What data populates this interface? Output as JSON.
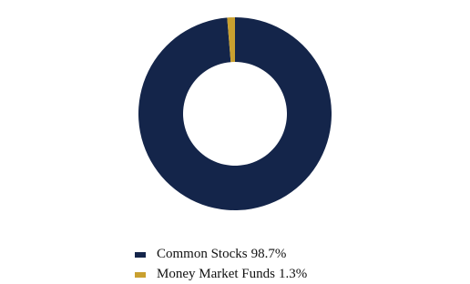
{
  "chart_data": {
    "type": "donut",
    "categories": [
      "Common Stocks",
      "Money Market Funds"
    ],
    "values": [
      98.7,
      1.3
    ],
    "value_labels": [
      "98.7%",
      "1.3%"
    ],
    "colors": [
      "#14254a",
      "#c9a02f"
    ]
  }
}
